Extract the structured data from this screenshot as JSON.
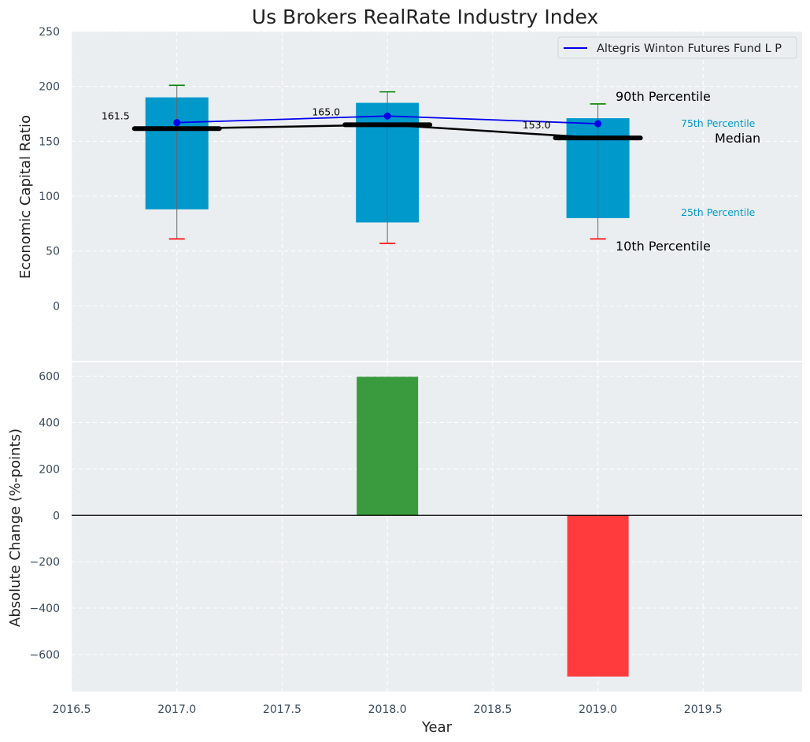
{
  "chart_data": [
    {
      "type": "box",
      "title": "Us Brokers RealRate Industry Index",
      "ylabel": "Economic Capital Ratio",
      "ylim": [
        -50,
        250
      ],
      "yticks": [
        "250",
        "200",
        "150",
        "100",
        "50",
        "0"
      ],
      "x": [
        2017.0,
        2018.0,
        2019.0
      ],
      "boxes": [
        {
          "x": 2017.0,
          "p10": 61,
          "p25": 88,
          "median": 161.5,
          "p75": 190,
          "p90": 201,
          "median_label": "161.5"
        },
        {
          "x": 2018.0,
          "p10": 57,
          "p25": 76,
          "median": 165.0,
          "p75": 185,
          "p90": 195,
          "median_label": "165.0"
        },
        {
          "x": 2019.0,
          "p10": 61,
          "p25": 80,
          "median": 153.0,
          "p75": 171,
          "p90": 184,
          "median_label": "153.0"
        }
      ],
      "series": [
        {
          "name": "Altegris Winton Futures Fund L P",
          "color": "#0000ee",
          "values": [
            167,
            173,
            166
          ]
        }
      ],
      "median_line_values": [
        161.5,
        165.0,
        153.0
      ],
      "annotations": {
        "p90": "90th Percentile",
        "p75": "75th Percentile",
        "median": "Median",
        "p25": "25th Percentile",
        "p10": "10th Percentile"
      },
      "legend_position": "upper right",
      "grid": true,
      "colors": {
        "box": "#0099cc",
        "p90_cap": "#008000",
        "p10_cap": "#ff0000",
        "whisker": "#666666",
        "median": "#000000"
      }
    },
    {
      "type": "bar",
      "xlabel": "Year",
      "ylabel": "Absolute Change (%-points)",
      "ylim": [
        -760,
        660
      ],
      "xlim": [
        2016.5,
        2019.97
      ],
      "yticks": [
        "600",
        "400",
        "200",
        "0",
        "−200",
        "−400",
        "−600"
      ],
      "xticks": [
        "2016.5",
        "2017.0",
        "2017.5",
        "2018.0",
        "2018.5",
        "2019.0",
        "2019.5"
      ],
      "x": [
        2018.0,
        2019.0
      ],
      "values": [
        598,
        -695
      ],
      "colors": [
        "#3a9a3e",
        "#ff3b3e"
      ],
      "grid": true
    }
  ]
}
